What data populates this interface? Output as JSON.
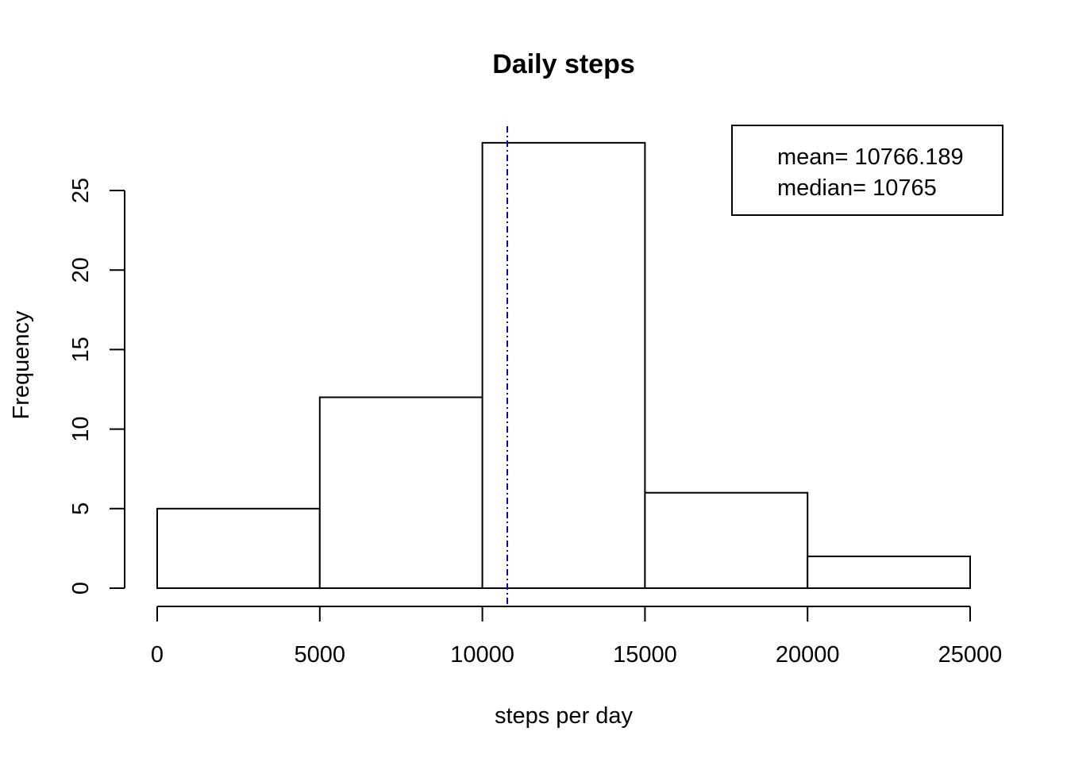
{
  "chart_data": {
    "type": "histogram",
    "title": "Daily steps",
    "xlabel": "steps per day",
    "ylabel": "Frequency",
    "bins": [
      {
        "start": 0,
        "end": 5000,
        "count": 5
      },
      {
        "start": 5000,
        "end": 10000,
        "count": 12
      },
      {
        "start": 10000,
        "end": 15000,
        "count": 28
      },
      {
        "start": 15000,
        "end": 20000,
        "count": 6
      },
      {
        "start": 20000,
        "end": 25000,
        "count": 2
      }
    ],
    "x_ticks": [
      "0",
      "5000",
      "10000",
      "15000",
      "20000",
      "25000"
    ],
    "x_tick_values": [
      0,
      5000,
      10000,
      15000,
      20000,
      25000
    ],
    "y_ticks": [
      "0",
      "5",
      "10",
      "15",
      "20",
      "25"
    ],
    "y_tick_values": [
      0,
      5,
      10,
      15,
      20,
      25
    ],
    "xlim": [
      0,
      25000
    ],
    "ylim": [
      0,
      28
    ],
    "mean_line": {
      "value": 10766.189,
      "color": "#0000cc",
      "style": "dot-dash"
    },
    "legend": {
      "position": "top-right",
      "entries": [
        "mean= 10766.189",
        "median= 10765"
      ]
    },
    "grid": false
  }
}
